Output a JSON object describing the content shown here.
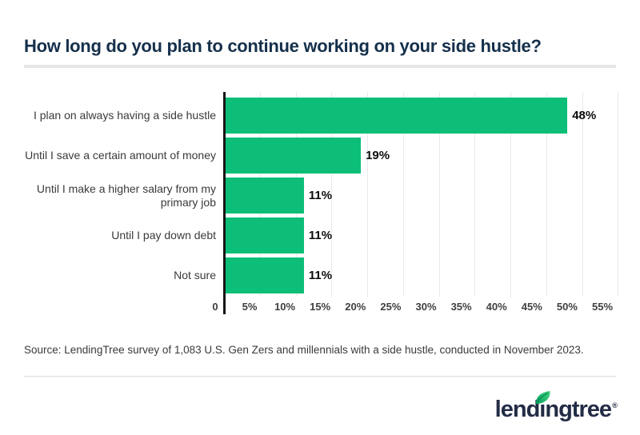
{
  "header": {
    "title": "How long do you plan to continue working on your side hustle?"
  },
  "chart_data": {
    "type": "bar",
    "orientation": "horizontal",
    "title": "How long do you plan to continue working on your side hustle?",
    "categories": [
      "I plan on always having a side hustle",
      "Until I save a certain amount of money",
      "Until I make a higher salary from my\nprimary job",
      "Until I pay down debt",
      "Not sure"
    ],
    "values": [
      48,
      19,
      11,
      11,
      11
    ],
    "value_labels": [
      "48%",
      "19%",
      "11%",
      "11%",
      "11%"
    ],
    "xlabel": "",
    "ylabel": "",
    "xlim": [
      0,
      55
    ],
    "x_ticks": [
      "0",
      "5%",
      "10%",
      "15%",
      "20%",
      "25%",
      "30%",
      "35%",
      "40%",
      "45%",
      "50%",
      "55%"
    ],
    "grid": true,
    "legend": false,
    "bar_color": "#0DBE78"
  },
  "source": {
    "text": "Source: LendingTree survey of 1,083 U.S. Gen Zers and millennials with a side hustle, conducted in November 2023."
  },
  "footer": {
    "logo": {
      "text": "lendingtree",
      "prefix": "lend",
      "dotless_i": "ı",
      "suffix": "ngtree",
      "registered": "®"
    },
    "leaf_icon": "leaf-icon"
  },
  "colors": {
    "accent_green": "#0DBE78",
    "leaf_dark_green": "#009e5f",
    "leaf_light_green": "#4cd57f",
    "title_navy": "#15304B",
    "logo_navy": "#232C46",
    "gridline": "#e9e9e9",
    "divider": "#e7e7e7"
  }
}
